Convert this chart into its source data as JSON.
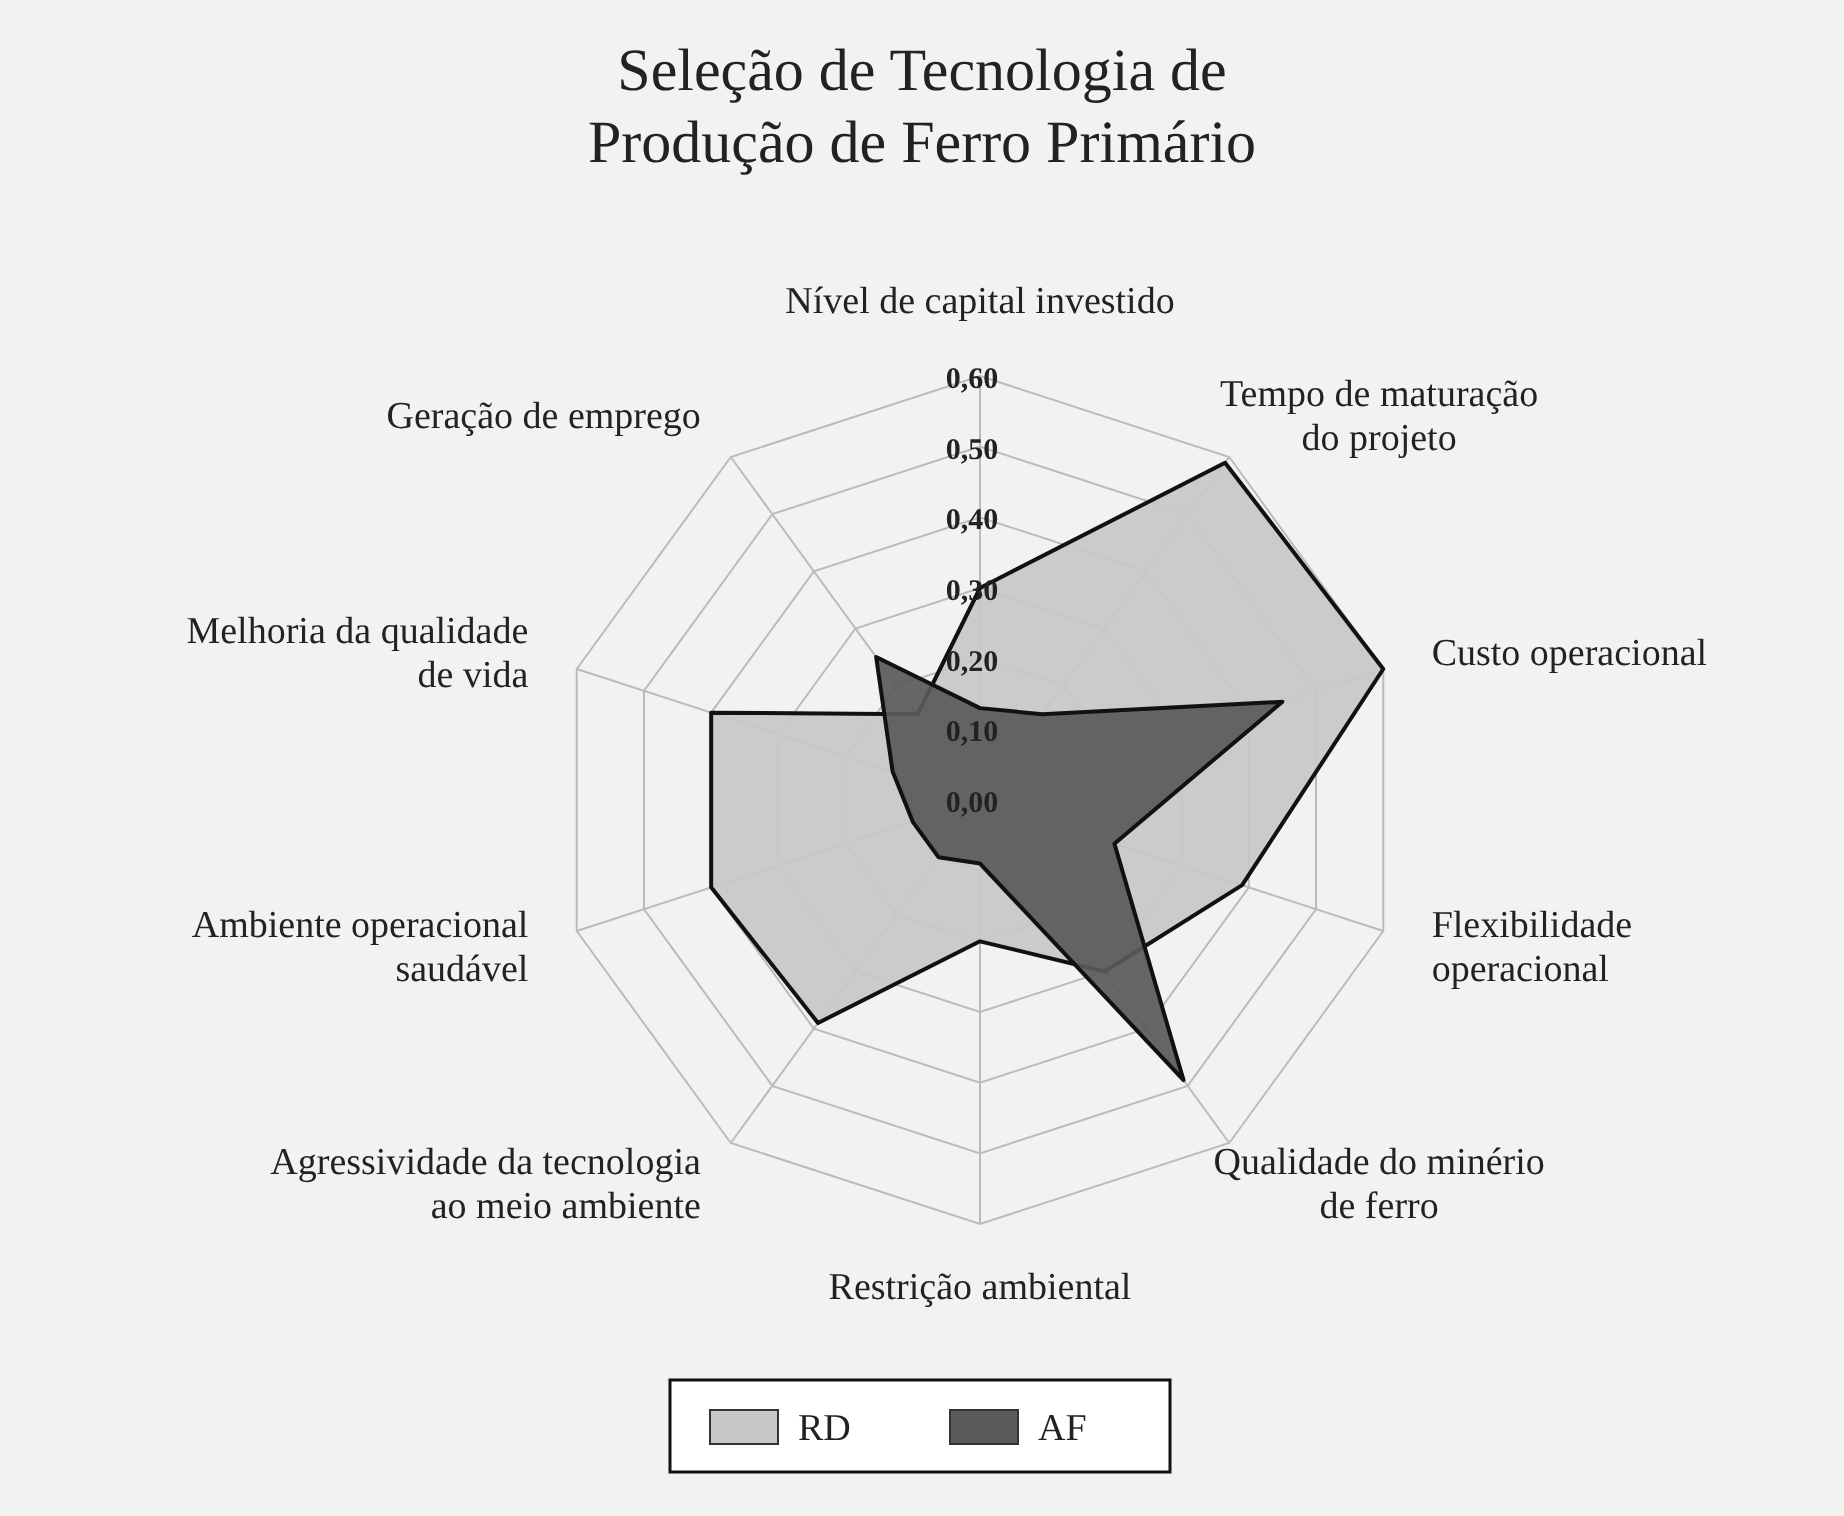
{
  "chart_data": {
    "type": "radar",
    "title": "Seleção de Tecnologia de Produção de Ferro Primário",
    "categories": [
      "Nível de capital investido",
      "Tempo de maturação do projeto",
      "Custo operacional",
      "Flexibilidade operacional",
      "Qualidade do minério de ferro",
      "Restrição ambiental",
      "Agressividade da tecnologia ao meio ambiente",
      "Ambiente operacional saudável",
      "Melhoria da qualidade de vida",
      "Geração de emprego"
    ],
    "series": [
      {
        "name": "RD",
        "color": "#c8c8c8",
        "values": [
          0.3,
          0.59,
          0.6,
          0.39,
          0.3,
          0.2,
          0.39,
          0.4,
          0.4,
          0.15
        ]
      },
      {
        "name": "AF",
        "color": "#5a5a5a",
        "values": [
          0.13,
          0.15,
          0.45,
          0.2,
          0.49,
          0.09,
          0.1,
          0.1,
          0.13,
          0.25
        ]
      }
    ],
    "ylim": [
      0,
      0.6
    ],
    "yticks": [
      {
        "value": 0,
        "label": "0,00"
      },
      {
        "value": 0.1,
        "label": "0,10"
      },
      {
        "value": 0.2,
        "label": "0,20"
      },
      {
        "value": 0.3,
        "label": "0,30"
      },
      {
        "value": 0.4,
        "label": "0,40"
      },
      {
        "value": 0.5,
        "label": "0,50"
      },
      {
        "value": 0.6,
        "label": "0,60"
      }
    ],
    "grid": true,
    "legend": "bottom"
  }
}
